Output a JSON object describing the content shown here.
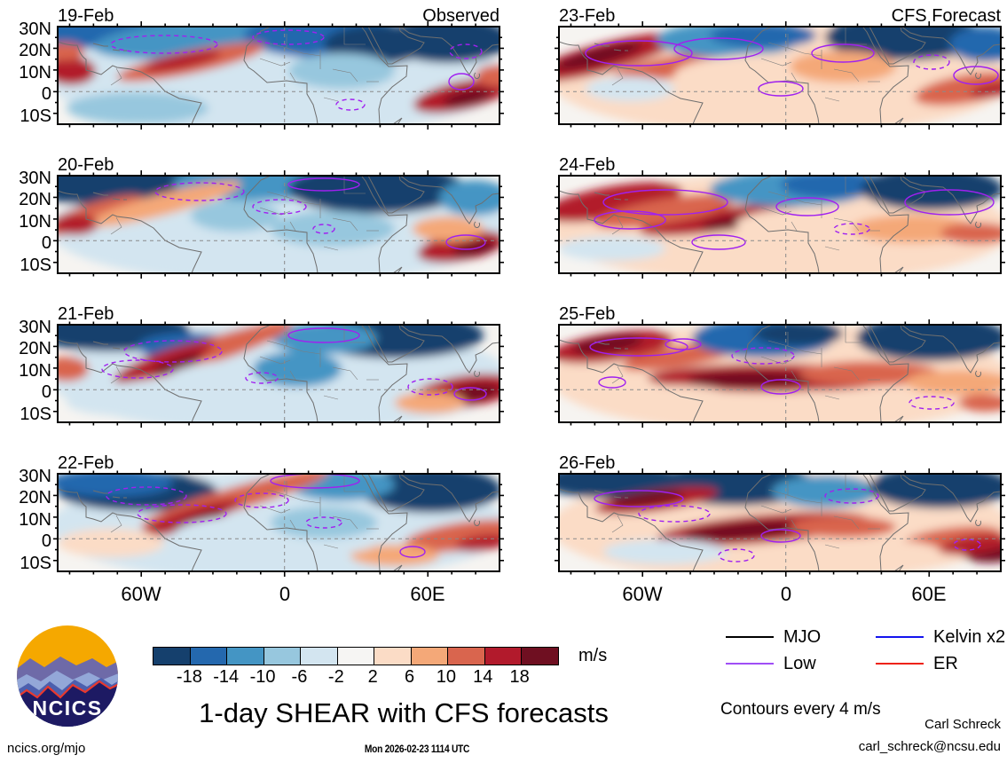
{
  "header": {
    "observed_label": "Observed",
    "forecast_label": "CFS Forecast"
  },
  "panels": [
    {
      "date": "19-Feb",
      "column": "Observed"
    },
    {
      "date": "20-Feb",
      "column": "Observed"
    },
    {
      "date": "21-Feb",
      "column": "Observed"
    },
    {
      "date": "22-Feb",
      "column": "Observed"
    },
    {
      "date": "23-Feb",
      "column": "CFS Forecast"
    },
    {
      "date": "24-Feb",
      "column": "CFS Forecast"
    },
    {
      "date": "25-Feb",
      "column": "CFS Forecast"
    },
    {
      "date": "26-Feb",
      "column": "CFS Forecast"
    }
  ],
  "axes": {
    "lat_ticks": [
      "30N",
      "20N",
      "10N",
      "0",
      "10S"
    ],
    "lon_ticks": [
      "60W",
      "0",
      "60E"
    ]
  },
  "colorbar": {
    "units": "m/s",
    "boundary_labels": [
      "-18",
      "-14",
      "-10",
      "-6",
      "-2",
      "2",
      "6",
      "10",
      "14",
      "18"
    ],
    "colors": [
      "#15406d",
      "#2468ae",
      "#4495c4",
      "#97c7de",
      "#d3e5f0",
      "#f6f5f3",
      "#fbdcc6",
      "#f4a878",
      "#d9654e",
      "#b21a2c",
      "#6f0f21"
    ]
  },
  "legend": {
    "items": [
      {
        "label": "MJO",
        "color": "#000000"
      },
      {
        "label": "Low",
        "color": "#a04ef6"
      },
      {
        "label": "Kelvin x2",
        "color": "#1414ee"
      },
      {
        "label": "ER",
        "color": "#ee2211"
      }
    ],
    "note": "Contours every 4 m/s"
  },
  "title": "1-day SHEAR with CFS forecasts",
  "timestamp": "Mon 2026-02-23 1114 UTC",
  "credits": {
    "author": "Carl Schreck",
    "email": "carl_schreck@ncsu.edu",
    "url": "ncics.org/mjo"
  },
  "logo": {
    "text": "NCICS"
  },
  "chart_data": {
    "type": "heatmap",
    "title": "1-day SHEAR with CFS forecasts",
    "units": "m/s",
    "generated": "Mon 2026-02-23 1114 UTC",
    "panel_layout": "2 columns x 4 rows of longitude-latitude maps",
    "columns": [
      {
        "name": "Observed",
        "dates": [
          "19-Feb",
          "20-Feb",
          "21-Feb",
          "22-Feb"
        ]
      },
      {
        "name": "CFS Forecast",
        "dates": [
          "23-Feb",
          "24-Feb",
          "25-Feb",
          "26-Feb"
        ]
      }
    ],
    "x_axis": {
      "tick_labels": [
        "60W",
        "0",
        "60E"
      ],
      "approx_range_deg_lon": [
        -95,
        90
      ]
    },
    "y_axis": {
      "tick_labels": [
        "30N",
        "20N",
        "10N",
        "0",
        "10S"
      ],
      "approx_range_deg_lat": [
        -15,
        30
      ]
    },
    "color_scale": {
      "bin_boundaries": [
        -18,
        -14,
        -10,
        -6,
        -2,
        2,
        6,
        10,
        14,
        18
      ],
      "bin_colors": [
        "#15406d",
        "#2468ae",
        "#4495c4",
        "#97c7de",
        "#d3e5f0",
        "#f6f5f3",
        "#fbdcc6",
        "#f4a878",
        "#d9654e",
        "#b21a2c",
        "#6f0f21"
      ],
      "units": "m/s"
    },
    "contour_overlays": [
      {
        "name": "MJO",
        "color": "#000000"
      },
      {
        "name": "Low",
        "color": "#a04ef6"
      },
      {
        "name": "Kelvin x2",
        "color": "#1414ee"
      },
      {
        "name": "ER",
        "color": "#ee2211"
      }
    ],
    "contour_interval_note": "Contours every 4 m/s"
  }
}
